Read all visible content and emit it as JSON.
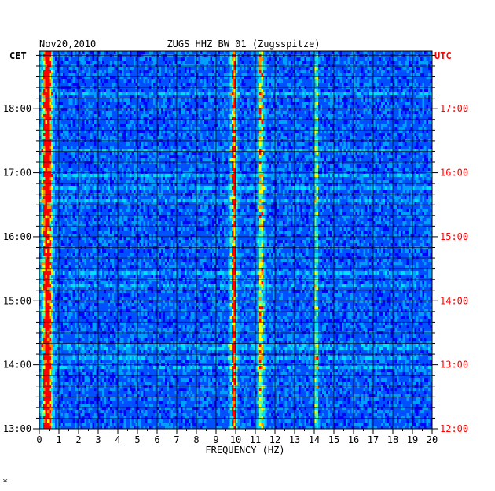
{
  "chart_data": {
    "type": "heatmap",
    "date": "Nov20,2010",
    "title": "ZUGS HHZ BW 01 (Zugsspitze)",
    "xlabel": "FREQUENCY (HZ)",
    "left_zone": "CET",
    "right_zone": "UTC",
    "xlim": [
      0,
      20
    ],
    "x_ticks": [
      "0",
      "1",
      "2",
      "3",
      "4",
      "5",
      "6",
      "7",
      "8",
      "9",
      "10",
      "11",
      "12",
      "13",
      "14",
      "15",
      "16",
      "17",
      "18",
      "19",
      "20"
    ],
    "left_time_ticks": [
      "18:00",
      "17:00",
      "16:00",
      "15:00",
      "14:00",
      "13:00"
    ],
    "right_time_ticks": [
      "17:00",
      "16:00",
      "15:00",
      "14:00",
      "13:00",
      "12:00"
    ],
    "time_range_cet_hours": [
      13,
      18.9
    ],
    "grid": true,
    "colors": {
      "background": "#0000c8",
      "low": "#0000ff",
      "mid": "#00c8ff",
      "high": "#ffff00",
      "peak": "#ff0000",
      "utc_label": "#ff0000"
    },
    "energy_bands_hz": [
      {
        "name": "low-frequency",
        "center": 0.4,
        "width": 0.25,
        "strength": 0.9
      },
      {
        "name": "band-10hz",
        "center": 9.9,
        "width": 0.15,
        "strength": 0.75
      },
      {
        "name": "band-11hz",
        "center": 11.3,
        "width": 0.15,
        "strength": 0.5
      },
      {
        "name": "band-14hz",
        "center": 14.1,
        "width": 0.08,
        "strength": 0.45
      }
    ],
    "footnote": "*"
  }
}
